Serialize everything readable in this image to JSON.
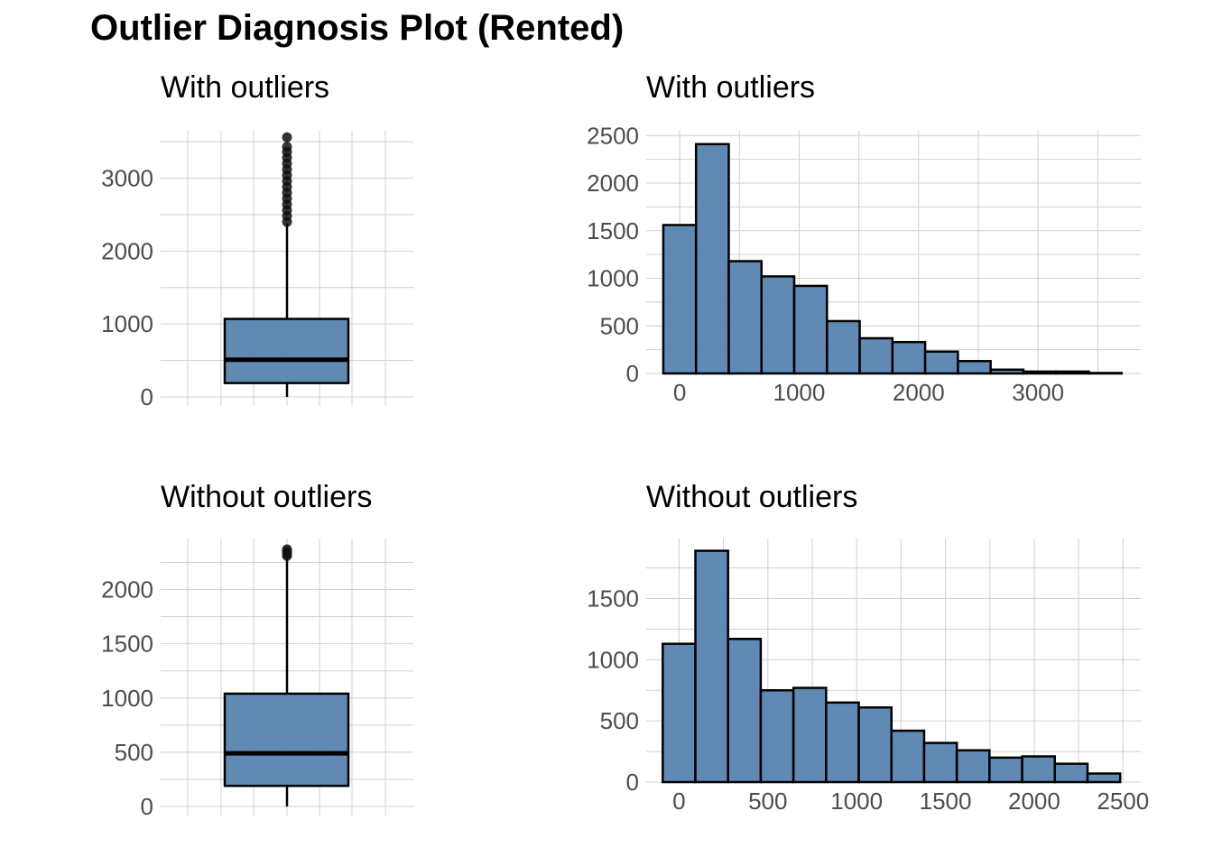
{
  "title": "Outlier Diagnosis Plot (Rented)",
  "colors": {
    "fill": "#4F7CAC",
    "stroke": "#000000",
    "grid": "#d0d0d0",
    "tick": "#4d4d4d"
  },
  "chart_data": [
    {
      "type": "boxplot",
      "title": "With outliers",
      "ylim": [
        0,
        3650
      ],
      "yticks": [
        0,
        1000,
        2000,
        3000
      ],
      "box": {
        "q1": 190,
        "median": 510,
        "q3": 1070,
        "whisker_low": 0,
        "whisker_high": 2380
      },
      "outliers": [
        2400,
        2480,
        2560,
        2640,
        2720,
        2800,
        2880,
        2960,
        3040,
        3120,
        3200,
        3280,
        3360,
        3430,
        3560
      ],
      "grid": true
    },
    {
      "type": "histogram",
      "title": "With outliers",
      "xlim": [
        -280,
        3860
      ],
      "ylim": [
        0,
        2550
      ],
      "xticks": [
        0,
        1000,
        2000,
        3000
      ],
      "yticks": [
        0,
        500,
        1000,
        1500,
        2000,
        2500
      ],
      "bins": [
        {
          "x0": -137,
          "x1": 137,
          "count": 1560
        },
        {
          "x0": 137,
          "x1": 411,
          "count": 2410
        },
        {
          "x0": 411,
          "x1": 685,
          "count": 1180
        },
        {
          "x0": 685,
          "x1": 959,
          "count": 1020
        },
        {
          "x0": 959,
          "x1": 1233,
          "count": 920
        },
        {
          "x0": 1233,
          "x1": 1507,
          "count": 550
        },
        {
          "x0": 1507,
          "x1": 1781,
          "count": 370
        },
        {
          "x0": 1781,
          "x1": 2055,
          "count": 330
        },
        {
          "x0": 2055,
          "x1": 2329,
          "count": 230
        },
        {
          "x0": 2329,
          "x1": 2603,
          "count": 130
        },
        {
          "x0": 2603,
          "x1": 2877,
          "count": 40
        },
        {
          "x0": 2877,
          "x1": 3151,
          "count": 20
        },
        {
          "x0": 3151,
          "x1": 3425,
          "count": 20
        },
        {
          "x0": 3425,
          "x1": 3699,
          "count": 5
        }
      ],
      "grid": true
    },
    {
      "type": "boxplot",
      "title": "Without outliers",
      "ylim": [
        0,
        2470
      ],
      "yticks": [
        0,
        500,
        1000,
        1500,
        2000
      ],
      "box": {
        "q1": 190,
        "median": 490,
        "q3": 1040,
        "whisker_low": 0,
        "whisker_high": 2300
      },
      "outliers": [
        2310,
        2330,
        2350,
        2370
      ],
      "grid": true
    },
    {
      "type": "histogram",
      "title": "Without outliers",
      "xlim": [
        -185,
        2600
      ],
      "ylim": [
        0,
        1990
      ],
      "xticks": [
        0,
        500,
        1000,
        1500,
        2000,
        2500
      ],
      "yticks": [
        0,
        500,
        1000,
        1500
      ],
      "bins": [
        {
          "x0": -92,
          "x1": 92,
          "count": 1130
        },
        {
          "x0": 92,
          "x1": 276,
          "count": 1890
        },
        {
          "x0": 276,
          "x1": 460,
          "count": 1170
        },
        {
          "x0": 460,
          "x1": 644,
          "count": 750
        },
        {
          "x0": 644,
          "x1": 828,
          "count": 770
        },
        {
          "x0": 828,
          "x1": 1012,
          "count": 650
        },
        {
          "x0": 1012,
          "x1": 1196,
          "count": 610
        },
        {
          "x0": 1196,
          "x1": 1380,
          "count": 420
        },
        {
          "x0": 1380,
          "x1": 1564,
          "count": 320
        },
        {
          "x0": 1564,
          "x1": 1748,
          "count": 260
        },
        {
          "x0": 1748,
          "x1": 1932,
          "count": 200
        },
        {
          "x0": 1932,
          "x1": 2116,
          "count": 210
        },
        {
          "x0": 2116,
          "x1": 2300,
          "count": 150
        },
        {
          "x0": 2300,
          "x1": 2484,
          "count": 70
        }
      ],
      "grid": true
    }
  ]
}
